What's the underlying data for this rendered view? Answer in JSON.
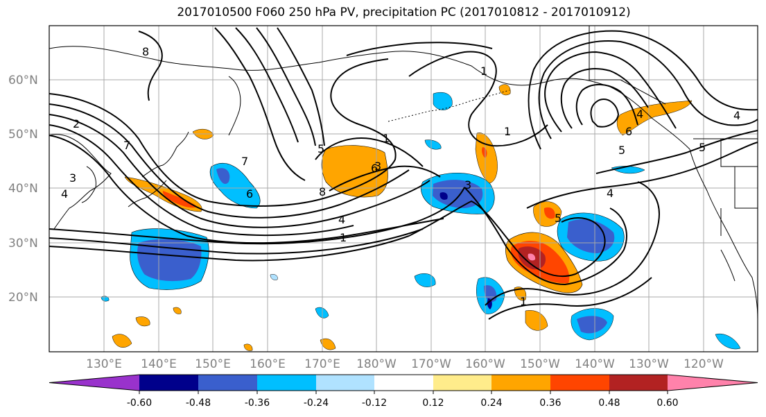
{
  "title": "2017010500 F060 250 hPa PV, precipitation PC (2017010812 - 2017010912)",
  "lat_labels": [
    "60°N",
    "50°N",
    "40°N",
    "30°N",
    "20°N"
  ],
  "lon_labels": [
    "130°E",
    "140°E",
    "150°E",
    "160°E",
    "170°E",
    "180°W",
    "170°W",
    "160°W",
    "150°W",
    "140°W",
    "130°W",
    "120°W"
  ],
  "colorbar": {
    "colors": [
      "#9932cc",
      "#00008b",
      "#3a5fcd",
      "#00bfff",
      "#b0e2ff",
      "#ffffff",
      "#ffec8b",
      "#ffa500",
      "#ff4500",
      "#b22222",
      "#ff82ab"
    ],
    "tick_labels": [
      "-0.60",
      "-0.48",
      "-0.36",
      "-0.24",
      "-0.12",
      "0.12",
      "0.24",
      "0.36",
      "0.48",
      "0.60"
    ]
  },
  "contour_labels": [
    "8",
    "2",
    "3",
    "4",
    "7",
    "1",
    "6",
    "5",
    "4",
    "1",
    "1",
    "8",
    "7",
    "6",
    "3",
    "1",
    "4",
    "5",
    "4",
    "6",
    "1",
    "4",
    "5",
    "3",
    "5"
  ]
}
